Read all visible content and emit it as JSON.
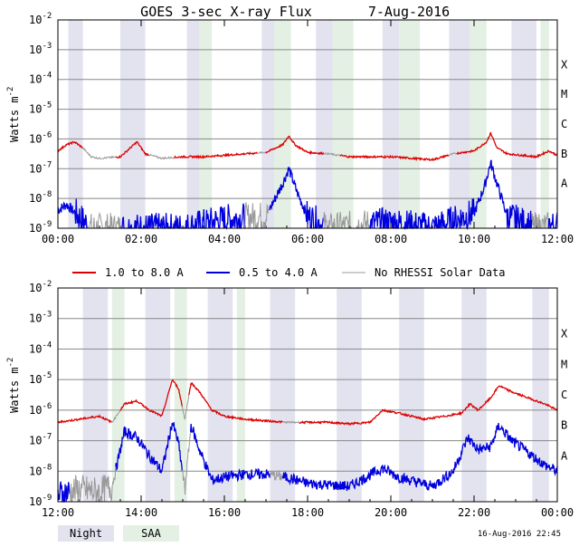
{
  "chart_data": {
    "type": "line",
    "title": "GOES 3-sec X-ray Flux",
    "date": "7-Aug-2016",
    "ylabel": "Watts m",
    "ylabel_sup": "-2",
    "yscale": "log",
    "ylim": [
      1e-09,
      0.01
    ],
    "ytick_exponents": [
      "-2",
      "-3",
      "-4",
      "-5",
      "-6",
      "-7",
      "-8",
      "-9"
    ],
    "flare_classes": [
      "X",
      "M",
      "C",
      "B",
      "A"
    ],
    "legend": [
      {
        "name": "1.0 to 8.0 A",
        "color": "#dd0000"
      },
      {
        "name": "0.5 to 4.0 A",
        "color": "#0000dd"
      },
      {
        "name": "No RHESSI Solar Data",
        "color": "#999999"
      }
    ],
    "shading_legend": [
      {
        "name": "Night",
        "color": "#e3e3f0"
      },
      {
        "name": "SAA",
        "color": "#e3f0e3"
      }
    ],
    "footer": "16-Aug-2016 22:45",
    "panels": [
      {
        "name": "00:00-12:00",
        "x_range": [
          0,
          12
        ],
        "xtick_labels": [
          "00:00",
          "02:00",
          "04:00",
          "06:00",
          "08:00",
          "10:00",
          "12:00"
        ],
        "night": [
          [
            0.25,
            0.6
          ],
          [
            1.5,
            2.1
          ],
          [
            3.1,
            3.4
          ],
          [
            4.9,
            5.2
          ],
          [
            6.2,
            6.6
          ],
          [
            7.8,
            8.2
          ],
          [
            9.4,
            9.9
          ],
          [
            10.9,
            11.5
          ]
        ],
        "saa": [
          [
            3.4,
            3.7
          ],
          [
            5.2,
            5.6
          ],
          [
            6.6,
            7.1
          ],
          [
            8.2,
            8.7
          ],
          [
            9.9,
            10.3
          ],
          [
            11.6,
            11.8
          ]
        ],
        "long": [
          [
            0,
            -6.4
          ],
          [
            0.2,
            -6.2
          ],
          [
            0.4,
            -6.1
          ],
          [
            0.6,
            -6.3
          ],
          [
            0.8,
            -6.6
          ],
          [
            1.0,
            -6.65
          ],
          [
            1.5,
            -6.6
          ],
          [
            1.9,
            -6.1
          ],
          [
            2.1,
            -6.5
          ],
          [
            2.5,
            -6.65
          ],
          [
            3.0,
            -6.6
          ],
          [
            3.5,
            -6.6
          ],
          [
            4.0,
            -6.55
          ],
          [
            4.5,
            -6.5
          ],
          [
            5.0,
            -6.45
          ],
          [
            5.4,
            -6.2
          ],
          [
            5.55,
            -5.9
          ],
          [
            5.7,
            -6.2
          ],
          [
            6.0,
            -6.45
          ],
          [
            6.5,
            -6.5
          ],
          [
            7.0,
            -6.6
          ],
          [
            8.0,
            -6.6
          ],
          [
            9.0,
            -6.7
          ],
          [
            9.5,
            -6.5
          ],
          [
            10.0,
            -6.4
          ],
          [
            10.3,
            -6.1
          ],
          [
            10.4,
            -5.8
          ],
          [
            10.55,
            -6.3
          ],
          [
            10.8,
            -6.5
          ],
          [
            11.5,
            -6.6
          ],
          [
            11.8,
            -6.4
          ],
          [
            12,
            -6.55
          ]
        ],
        "short": [
          [
            0,
            -8.4
          ],
          [
            0.2,
            -8.2
          ],
          [
            0.5,
            -8.6
          ],
          [
            0.8,
            -9.0
          ],
          [
            1.0,
            -9.0
          ],
          [
            1.5,
            -9.0
          ],
          [
            3.0,
            -9.0
          ],
          [
            4.0,
            -8.7
          ],
          [
            5.0,
            -8.6
          ],
          [
            5.4,
            -7.5
          ],
          [
            5.55,
            -7.0
          ],
          [
            5.75,
            -7.8
          ],
          [
            6.0,
            -8.6
          ],
          [
            6.5,
            -9.0
          ],
          [
            8.0,
            -8.8
          ],
          [
            9.0,
            -9.0
          ],
          [
            10.0,
            -8.5
          ],
          [
            10.25,
            -7.6
          ],
          [
            10.4,
            -6.8
          ],
          [
            10.55,
            -7.5
          ],
          [
            10.8,
            -8.6
          ],
          [
            11.5,
            -9.0
          ],
          [
            12,
            -8.9
          ]
        ],
        "gaps": [
          [
            0.6,
            1.4,
            "long"
          ],
          [
            2.2,
            2.8,
            "long"
          ],
          [
            4.8,
            5.0,
            "long"
          ],
          [
            6.4,
            6.8,
            "long"
          ],
          [
            9.4,
            9.6,
            "long"
          ],
          [
            0.7,
            1.5,
            "short"
          ],
          [
            4.5,
            5.1,
            "short"
          ],
          [
            6.4,
            7.5,
            "short"
          ],
          [
            11.4,
            11.8,
            "short"
          ]
        ]
      },
      {
        "name": "12:00-00:00",
        "x_range": [
          12,
          24
        ],
        "xtick_labels": [
          "12:00",
          "14:00",
          "16:00",
          "18:00",
          "20:00",
          "22:00",
          "00:00"
        ],
        "night": [
          [
            12.6,
            13.2
          ],
          [
            14.1,
            14.7
          ],
          [
            15.6,
            16.2
          ],
          [
            17.1,
            17.7
          ],
          [
            18.7,
            19.3
          ],
          [
            20.2,
            20.8
          ],
          [
            21.7,
            22.3
          ],
          [
            23.4,
            23.8
          ]
        ],
        "saa": [
          [
            13.3,
            13.6
          ],
          [
            14.8,
            15.1
          ],
          [
            16.3,
            16.5
          ]
        ],
        "long": [
          [
            12,
            -6.4
          ],
          [
            12.5,
            -6.3
          ],
          [
            13.0,
            -6.2
          ],
          [
            13.3,
            -6.4
          ],
          [
            13.6,
            -5.8
          ],
          [
            13.9,
            -5.7
          ],
          [
            14.2,
            -6.0
          ],
          [
            14.5,
            -6.2
          ],
          [
            14.75,
            -5.0
          ],
          [
            14.9,
            -5.3
          ],
          [
            15.05,
            -6.3
          ],
          [
            15.2,
            -5.1
          ],
          [
            15.4,
            -5.4
          ],
          [
            15.7,
            -6.0
          ],
          [
            16.0,
            -6.2
          ],
          [
            16.5,
            -6.3
          ],
          [
            17.0,
            -6.35
          ],
          [
            17.5,
            -6.4
          ],
          [
            18.0,
            -6.4
          ],
          [
            18.5,
            -6.4
          ],
          [
            19.0,
            -6.45
          ],
          [
            19.5,
            -6.4
          ],
          [
            19.8,
            -6.0
          ],
          [
            20.2,
            -6.1
          ],
          [
            20.8,
            -6.3
          ],
          [
            21.3,
            -6.2
          ],
          [
            21.7,
            -6.1
          ],
          [
            21.9,
            -5.8
          ],
          [
            22.1,
            -6.0
          ],
          [
            22.4,
            -5.6
          ],
          [
            22.6,
            -5.2
          ],
          [
            22.9,
            -5.4
          ],
          [
            23.3,
            -5.6
          ],
          [
            23.7,
            -5.8
          ],
          [
            24,
            -6.0
          ]
        ],
        "short": [
          [
            12,
            -8.8
          ],
          [
            12.5,
            -8.6
          ],
          [
            13.0,
            -8.7
          ],
          [
            13.3,
            -8.5
          ],
          [
            13.6,
            -6.7
          ],
          [
            13.9,
            -6.9
          ],
          [
            14.2,
            -7.5
          ],
          [
            14.5,
            -8.0
          ],
          [
            14.75,
            -6.4
          ],
          [
            14.9,
            -7.1
          ],
          [
            15.05,
            -8.6
          ],
          [
            15.2,
            -6.5
          ],
          [
            15.4,
            -7.3
          ],
          [
            15.7,
            -8.3
          ],
          [
            16.0,
            -8.2
          ],
          [
            16.5,
            -8.1
          ],
          [
            17.0,
            -8.1
          ],
          [
            17.5,
            -8.2
          ],
          [
            18.0,
            -8.4
          ],
          [
            19.0,
            -8.5
          ],
          [
            19.8,
            -7.9
          ],
          [
            20.2,
            -8.2
          ],
          [
            21.0,
            -8.5
          ],
          [
            21.5,
            -8.0
          ],
          [
            21.85,
            -6.9
          ],
          [
            22.1,
            -7.3
          ],
          [
            22.4,
            -7.2
          ],
          [
            22.6,
            -6.5
          ],
          [
            22.9,
            -7.0
          ],
          [
            23.3,
            -7.4
          ],
          [
            23.7,
            -7.8
          ],
          [
            24,
            -8.0
          ]
        ],
        "gaps": [
          [
            13.3,
            13.5,
            "long"
          ],
          [
            15.0,
            15.15,
            "long"
          ],
          [
            17.4,
            17.8,
            "long"
          ],
          [
            12.3,
            13.4,
            "short"
          ],
          [
            15.0,
            15.2,
            "short"
          ],
          [
            17.1,
            17.4,
            "short"
          ]
        ]
      }
    ]
  }
}
